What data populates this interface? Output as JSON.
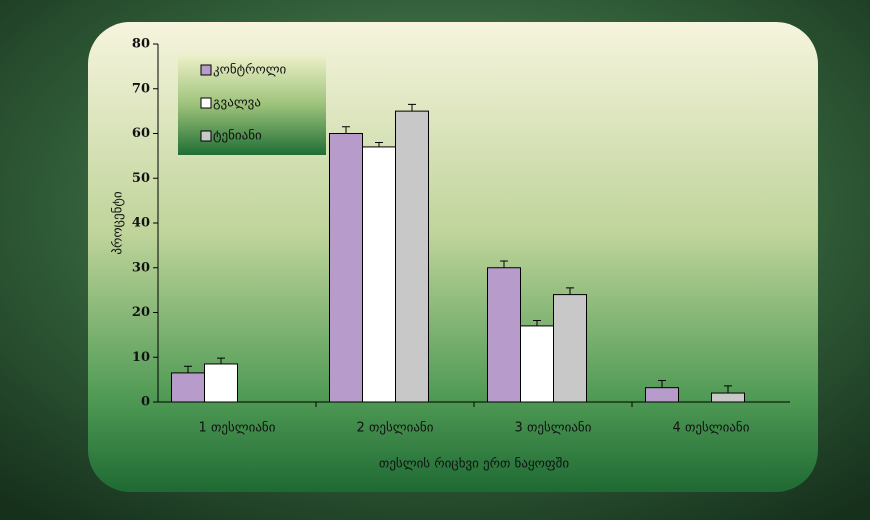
{
  "chart_data": {
    "type": "bar",
    "categories": [
      "1 თესლიანი",
      "2 თესლიანი",
      "3 თესლიანი",
      "4 თესლიანი"
    ],
    "x_label": "თესლის რიცხვი ერთ ნაყოფში",
    "y_label": "პროცენტი",
    "series": [
      {
        "name": "კონტროლი",
        "color": "#b79ccb",
        "values": [
          6.5,
          60,
          30,
          3.2
        ],
        "errors": [
          1.5,
          1.5,
          1.5,
          1.6
        ]
      },
      {
        "name": "გვალვა",
        "color": "#ffffff",
        "values": [
          8.5,
          57,
          17,
          null
        ],
        "errors": [
          1.3,
          1,
          1.2,
          null
        ]
      },
      {
        "name": "ტენიანი",
        "color": "#c8c8c8",
        "values": [
          null,
          65,
          24,
          2
        ],
        "errors": [
          null,
          1.5,
          1.5,
          1.6
        ]
      }
    ],
    "ylim": [
      0,
      80
    ],
    "yticks": [
      0,
      10,
      20,
      30,
      40,
      50,
      60,
      70,
      80
    ],
    "legend": "upper-left"
  }
}
